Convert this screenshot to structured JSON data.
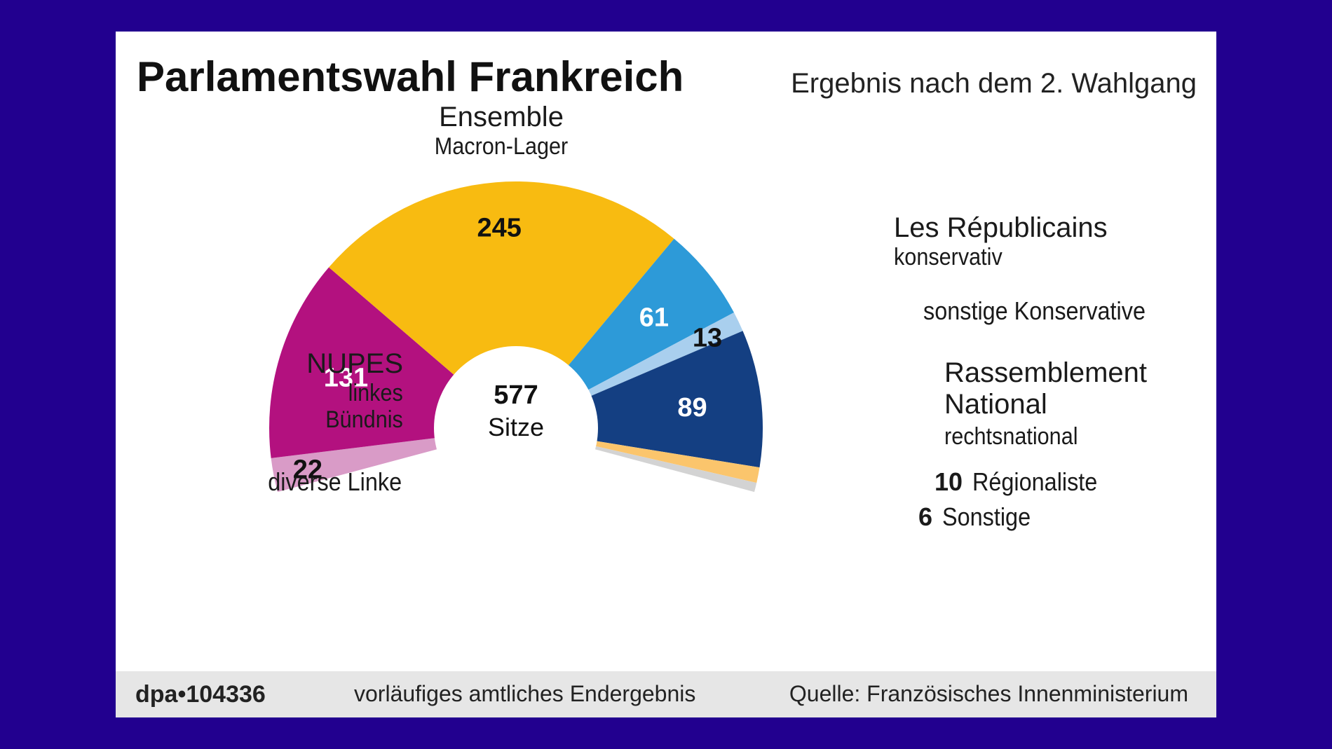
{
  "header": {
    "title": "Parlamentswahl Frankreich",
    "subtitle": "Ergebnis nach dem 2. Wahlgang"
  },
  "center": {
    "number": "577",
    "label": "Sitze"
  },
  "footer": {
    "code": "dpa•104336",
    "note": "vorläufiges amtliches Endergebnis",
    "source": "Quelle: Französisches Innenministerium"
  },
  "chart_data": {
    "type": "pie",
    "subtype": "semicircle-parliament",
    "title": "Parlamentswahl Frankreich",
    "subtitle": "Ergebnis nach dem 2. Wahlgang",
    "total": 577,
    "total_label": "Sitze",
    "series": [
      {
        "name": "diverse Linke",
        "note": "",
        "value": 22,
        "color": "#d99bc7",
        "value_text_color": "#111111"
      },
      {
        "name": "NUPES",
        "note_lines": [
          "linkes",
          "Bündnis"
        ],
        "value": 131,
        "color": "#b3117f",
        "value_text_color": "#ffffff"
      },
      {
        "name": "Ensemble",
        "note_lines": [
          "Macron-Lager"
        ],
        "value": 245,
        "color": "#f8bb11",
        "value_text_color": "#111111"
      },
      {
        "name": "Les Républicains",
        "note_lines": [
          "konservativ"
        ],
        "value": 61,
        "color": "#2d9ad8",
        "value_text_color": "#ffffff"
      },
      {
        "name": "sonstige Konservative",
        "note": "",
        "value": 13,
        "color": "#a9cfee",
        "value_text_color": "#111111"
      },
      {
        "name_lines": [
          "Rassemblement",
          "National"
        ],
        "note_lines": [
          "rechtsnational"
        ],
        "value": 89,
        "color": "#143f82",
        "value_text_color": "#ffffff"
      },
      {
        "name": "Régionaliste",
        "note": "",
        "value": 10,
        "color": "#fbc56c",
        "value_text_color": "#111111"
      },
      {
        "name": "Sonstige",
        "note": "",
        "value": 6,
        "color": "#d3d3d3",
        "value_text_color": "#111111"
      }
    ]
  }
}
